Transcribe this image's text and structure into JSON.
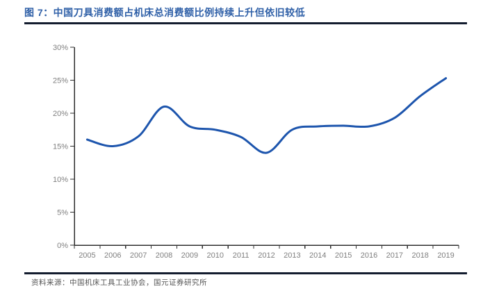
{
  "header": {
    "title": "图 7：中国刀具消费额占机床总消费额比例持续上升但依旧较低"
  },
  "footer": {
    "source": "资料来源：中国机床工具工业协会，国元证券研究所"
  },
  "colors": {
    "title": "#2e5fa7",
    "divider": "#131c2e",
    "line": "#1d55ad",
    "axis": "#2e2e2e",
    "tick_label": "#7f7f7f",
    "source_text": "#555555"
  },
  "chart_data": {
    "type": "line",
    "title": "图 7：中国刀具消费额占机床总消费额比例持续上升但依旧较低",
    "categories": [
      "2005",
      "2006",
      "2007",
      "2008",
      "2009",
      "2010",
      "2011",
      "2012",
      "2013",
      "2014",
      "2015",
      "2016",
      "2017",
      "2018",
      "2019"
    ],
    "values": [
      16.0,
      15.0,
      16.5,
      21.0,
      18.0,
      17.5,
      16.4,
      14.0,
      17.5,
      18.0,
      18.1,
      18.0,
      19.3,
      22.6,
      25.3
    ],
    "unit": "%",
    "ylim": [
      0,
      30
    ],
    "y_tick_interval": 5,
    "y_tick_labels": [
      "0%",
      "5%",
      "10%",
      "15%",
      "20%",
      "25%",
      "30%"
    ],
    "xlabel": "",
    "ylabel": "",
    "grid": false,
    "legend": "none",
    "smooth": true
  }
}
